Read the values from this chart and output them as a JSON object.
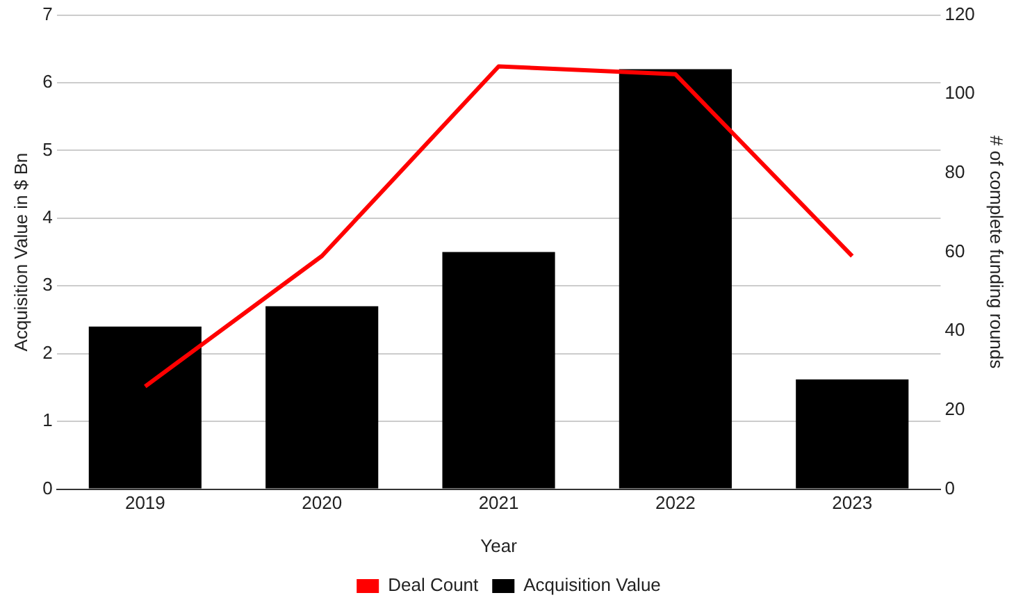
{
  "chart_data": {
    "type": "bar",
    "xlabel": "Year",
    "ylabel": "Acquisition Value in $ Bn",
    "y2label": "# of complete funding rounds",
    "categories": [
      "2019",
      "2020",
      "2021",
      "2022",
      "2023"
    ],
    "series": [
      {
        "name": "Deal Count",
        "type": "line",
        "axis": "y2",
        "color": "#ff0000",
        "values": [
          26,
          59,
          107,
          105,
          59
        ]
      },
      {
        "name": "Acquisition Value",
        "color": "#000000",
        "values": [
          2.4,
          2.7,
          3.5,
          6.2,
          1.62
        ]
      }
    ],
    "ylim": [
      0,
      7
    ],
    "yticks": [
      0,
      1,
      2,
      3,
      4,
      5,
      6,
      7
    ],
    "y2lim": [
      0,
      120
    ],
    "y2ticks": [
      0,
      20,
      40,
      60,
      80,
      100,
      120
    ],
    "grid": "y",
    "legend": "bottom",
    "marker": "none"
  }
}
